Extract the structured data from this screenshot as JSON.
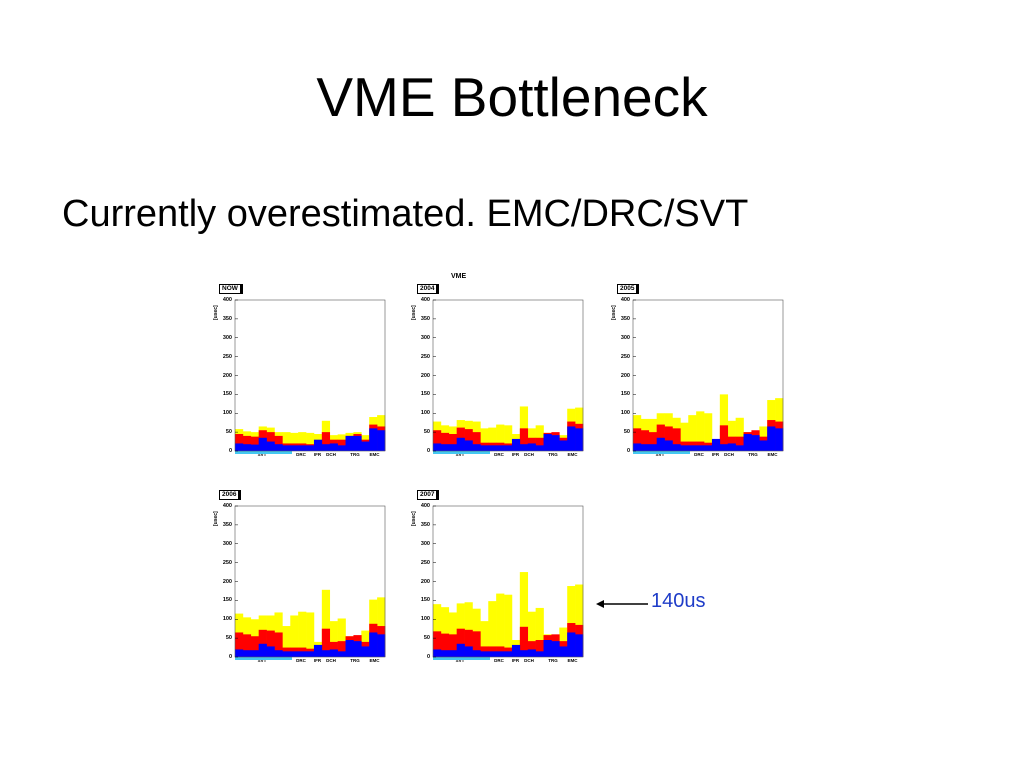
{
  "slide": {
    "title": "VME Bottleneck",
    "bullet": "Currently overestimated. EMC/DRC/SVT",
    "callout": "140us"
  },
  "figure": {
    "title": "VME",
    "ylabel": "[usec]",
    "yticks": [
      "400",
      "350",
      "300",
      "250",
      "200",
      "150",
      "100",
      "50",
      "0"
    ],
    "ylim": [
      0,
      400
    ],
    "xlabels": [
      "SVT",
      "DRC",
      "IFR",
      "DCH",
      "TRG",
      "EMC"
    ],
    "colors": {
      "blue": "#0000ff",
      "red": "#ff0000",
      "yellow": "#ffff00",
      "axis": "#000000",
      "svt": "#44c8f0"
    }
  },
  "chart_data": [
    {
      "type": "bar",
      "tag": "NOW",
      "series": [
        {
          "values": [
            20,
            18,
            17,
            35,
            25,
            18,
            15,
            15,
            15,
            15,
            30,
            18,
            20,
            15,
            40,
            40,
            25,
            60,
            55
          ]
        },
        {
          "values": [
            45,
            40,
            38,
            55,
            50,
            40,
            20,
            20,
            20,
            18,
            18,
            50,
            30,
            30,
            40,
            45,
            30,
            70,
            65
          ]
        },
        {
          "values": [
            58,
            52,
            50,
            65,
            62,
            50,
            50,
            48,
            50,
            48,
            45,
            80,
            42,
            44,
            48,
            50,
            42,
            90,
            95
          ]
        }
      ]
    },
    {
      "type": "bar",
      "tag": "2004",
      "series": [
        {
          "values": [
            20,
            18,
            18,
            35,
            28,
            18,
            15,
            15,
            15,
            15,
            32,
            18,
            20,
            15,
            45,
            42,
            28,
            65,
            60
          ]
        },
        {
          "values": [
            55,
            48,
            45,
            62,
            58,
            50,
            22,
            22,
            22,
            20,
            20,
            60,
            35,
            35,
            48,
            50,
            35,
            78,
            72
          ]
        },
        {
          "values": [
            78,
            68,
            65,
            82,
            80,
            78,
            60,
            62,
            70,
            68,
            45,
            118,
            60,
            68,
            48,
            45,
            42,
            112,
            115
          ]
        }
      ]
    },
    {
      "type": "bar",
      "tag": "2005",
      "series": [
        {
          "values": [
            20,
            18,
            18,
            35,
            28,
            18,
            15,
            15,
            15,
            15,
            32,
            18,
            20,
            15,
            45,
            42,
            28,
            65,
            60
          ]
        },
        {
          "values": [
            60,
            55,
            50,
            70,
            65,
            60,
            25,
            25,
            25,
            22,
            22,
            68,
            38,
            38,
            50,
            55,
            38,
            82,
            78
          ]
        },
        {
          "values": [
            95,
            85,
            85,
            100,
            100,
            88,
            75,
            95,
            105,
            100,
            20,
            150,
            80,
            88,
            50,
            48,
            65,
            135,
            140
          ]
        }
      ]
    },
    {
      "type": "bar",
      "tag": "2006",
      "series": [
        {
          "values": [
            20,
            18,
            18,
            35,
            28,
            18,
            15,
            15,
            15,
            15,
            32,
            18,
            20,
            15,
            45,
            42,
            28,
            65,
            60
          ]
        },
        {
          "values": [
            65,
            60,
            55,
            72,
            70,
            65,
            25,
            25,
            25,
            22,
            22,
            75,
            40,
            42,
            55,
            58,
            40,
            88,
            82
          ]
        },
        {
          "values": [
            115,
            105,
            100,
            110,
            110,
            118,
            82,
            110,
            120,
            118,
            40,
            178,
            95,
            102,
            55,
            52,
            70,
            152,
            158
          ]
        }
      ]
    },
    {
      "type": "bar",
      "tag": "2007",
      "series": [
        {
          "values": [
            20,
            18,
            18,
            35,
            28,
            18,
            15,
            15,
            15,
            15,
            32,
            18,
            20,
            15,
            45,
            42,
            28,
            65,
            60
          ]
        },
        {
          "values": [
            68,
            62,
            60,
            75,
            72,
            68,
            28,
            28,
            28,
            25,
            25,
            80,
            42,
            45,
            58,
            60,
            42,
            90,
            85
          ]
        },
        {
          "values": [
            140,
            132,
            118,
            142,
            145,
            128,
            95,
            148,
            168,
            165,
            45,
            225,
            120,
            130,
            60,
            58,
            78,
            188,
            192
          ]
        }
      ]
    }
  ]
}
